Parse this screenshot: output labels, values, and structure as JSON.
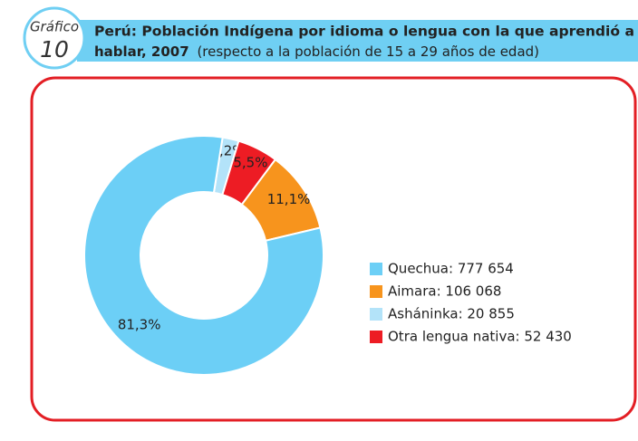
{
  "chart_data": {
    "type": "donut",
    "badge_word": "Gráfico",
    "badge_number": "10",
    "title": "Perú: Población Indígena por idioma o lengua con la que aprendió a",
    "title_line2": "hablar, 2007",
    "subtitle": "(respecto a la población de 15 a 29 años de edad)",
    "categories": [
      "Quechua: 777 654",
      "Aimara: 106 068",
      "Asháninka: 20 855",
      "Otra lengua nativa: 52 430"
    ],
    "values": [
      81.3,
      11.1,
      2.2,
      5.5
    ],
    "value_labels": [
      "81,3%",
      "11,1%",
      "2,2%",
      "5,5%"
    ],
    "colors": [
      "#6ccff6",
      "#f7941d",
      "#b3e3f9",
      "#ed1c24"
    ]
  }
}
